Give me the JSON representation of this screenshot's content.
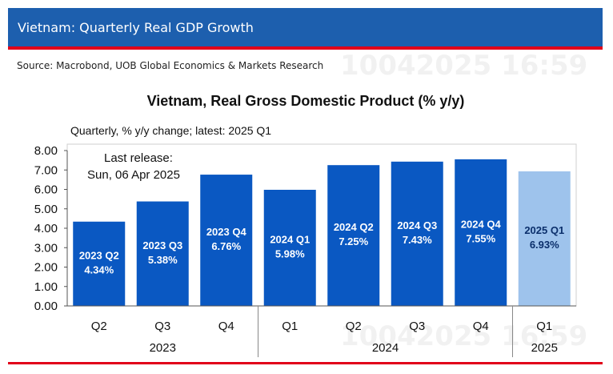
{
  "header": {
    "title": "Vietnam: Quarterly Real GDP Growth",
    "source": "Source: Macrobond, UOB Global Economics & Markets Research",
    "watermark": "10042025 16:59"
  },
  "colors": {
    "banner": "#1d5fae",
    "accent_rule": "#e1001a",
    "bar": "#0a58c2",
    "bar_latest": "#9ec3ec",
    "label_on_bar": "#ffffff",
    "label_on_latest": "#0b2f6b"
  },
  "chart_data": {
    "type": "bar",
    "title": "Vietnam, Real Gross Domestic Product (% y/y)",
    "subtitle": "Quarterly, % y/y change; latest: 2025 Q1",
    "annotation": [
      "Last release:",
      "Sun, 06 Apr 2025"
    ],
    "categories": [
      "Q2",
      "Q3",
      "Q4",
      "Q1",
      "Q2",
      "Q3",
      "Q4",
      "Q1"
    ],
    "year_groups": [
      {
        "label": "2023",
        "start": 0,
        "end": 2
      },
      {
        "label": "2024",
        "start": 3,
        "end": 6
      },
      {
        "label": "2025",
        "start": 7,
        "end": 7
      }
    ],
    "values": [
      4.34,
      5.38,
      6.76,
      5.98,
      7.25,
      7.43,
      7.55,
      6.93
    ],
    "data_labels": [
      [
        "2023 Q2",
        "4.34%"
      ],
      [
        "2023 Q3",
        "5.38%"
      ],
      [
        "2023 Q4",
        "6.76%"
      ],
      [
        "2024 Q1",
        "5.98%"
      ],
      [
        "2024 Q2",
        "7.25%"
      ],
      [
        "2024 Q3",
        "7.43%"
      ],
      [
        "2024 Q4",
        "7.55%"
      ],
      [
        "2025 Q1",
        "6.93%"
      ]
    ],
    "highlight_index": 7,
    "ylim": [
      0,
      8
    ],
    "yticks": [
      "0.00",
      "1.00",
      "2.00",
      "3.00",
      "4.00",
      "5.00",
      "6.00",
      "7.00",
      "8.00"
    ],
    "grid": false,
    "legend": "none"
  }
}
